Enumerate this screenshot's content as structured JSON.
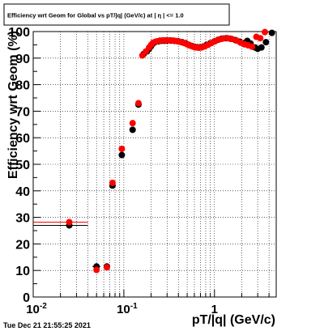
{
  "chart_data": {
    "type": "scatter",
    "title": "Efficiency wrt Geom for Global vs pT/|q| (GeV/c) at | η | <= 1.0",
    "xlabel": "pT/|q| (GeV/c)",
    "ylabel": "Efficiency wrt Geom (%)",
    "x_scale": "log",
    "xlim": [
      0.01,
      4.8
    ],
    "ylim": [
      0,
      100
    ],
    "grid": true,
    "y_ticks": [
      "0",
      "10",
      "20",
      "30",
      "40",
      "50",
      "60",
      "70",
      "80",
      "90",
      "100"
    ],
    "x_ticks": [
      {
        "base": "10",
        "exp": "-2",
        "value": 0.01
      },
      {
        "base": "10",
        "exp": "-1",
        "value": 0.1
      },
      {
        "base": "1",
        "exp": "",
        "value": 1
      }
    ],
    "series": [
      {
        "color": "#000000",
        "points": [
          {
            "x": 0.025,
            "y": 27.0,
            "xerr": [
              0.01,
              0.04
            ]
          },
          {
            "x": 0.05,
            "y": 11.5,
            "xerr": [
              0.045,
              0.055
            ]
          },
          {
            "x": 0.065,
            "y": 11.5
          },
          {
            "x": 0.075,
            "y": 42.0
          },
          {
            "x": 0.095,
            "y": 53.5,
            "xerr": [
              0.09,
              0.1
            ]
          },
          {
            "x": 0.125,
            "y": 63.0
          },
          {
            "x": 0.145,
            "y": 72.5
          },
          {
            "x": 0.165,
            "y": 91.5
          },
          {
            "x": 0.18,
            "y": 92.5
          },
          {
            "x": 0.19,
            "y": 93.5
          },
          {
            "x": 0.2,
            "y": 94.5
          },
          {
            "x": 0.21,
            "y": 95.5
          },
          {
            "x": 0.22,
            "y": 96.0
          },
          {
            "x": 0.24,
            "y": 96.3
          },
          {
            "x": 0.26,
            "y": 96.5
          },
          {
            "x": 0.28,
            "y": 96.5
          },
          {
            "x": 0.3,
            "y": 96.6
          },
          {
            "x": 0.33,
            "y": 96.6
          },
          {
            "x": 0.36,
            "y": 96.5
          },
          {
            "x": 0.4,
            "y": 96.3
          },
          {
            "x": 0.44,
            "y": 96.0
          },
          {
            "x": 0.48,
            "y": 95.6
          },
          {
            "x": 0.52,
            "y": 95.0
          },
          {
            "x": 0.56,
            "y": 94.6
          },
          {
            "x": 0.6,
            "y": 94.3
          },
          {
            "x": 0.65,
            "y": 94.1
          },
          {
            "x": 0.7,
            "y": 94.1
          },
          {
            "x": 0.76,
            "y": 94.4
          },
          {
            "x": 0.82,
            "y": 95.0
          },
          {
            "x": 0.9,
            "y": 95.6
          },
          {
            "x": 1.0,
            "y": 96.3
          },
          {
            "x": 1.1,
            "y": 96.9
          },
          {
            "x": 1.2,
            "y": 97.3
          },
          {
            "x": 1.35,
            "y": 97.5
          },
          {
            "x": 1.5,
            "y": 97.3
          },
          {
            "x": 1.7,
            "y": 96.8
          },
          {
            "x": 1.9,
            "y": 96.2
          },
          {
            "x": 2.1,
            "y": 95.6
          },
          {
            "x": 2.3,
            "y": 96.5
          },
          {
            "x": 2.5,
            "y": 95.5
          },
          {
            "x": 2.8,
            "y": 94.0
          },
          {
            "x": 3.0,
            "y": 93.5
          },
          {
            "x": 3.3,
            "y": 94.0
          },
          {
            "x": 3.7,
            "y": 96.0
          },
          {
            "x": 4.3,
            "y": 99.5
          }
        ]
      },
      {
        "color": "#ff0000",
        "points": [
          {
            "x": 0.025,
            "y": 28.2,
            "xerr": [
              0.01,
              0.04
            ]
          },
          {
            "x": 0.05,
            "y": 10.2
          },
          {
            "x": 0.065,
            "y": 11.2
          },
          {
            "x": 0.075,
            "y": 43.0
          },
          {
            "x": 0.095,
            "y": 55.8,
            "xerr": [
              0.09,
              0.1
            ]
          },
          {
            "x": 0.125,
            "y": 65.5
          },
          {
            "x": 0.145,
            "y": 73.0
          },
          {
            "x": 0.16,
            "y": 91.0
          },
          {
            "x": 0.175,
            "y": 92.5
          },
          {
            "x": 0.19,
            "y": 94.0
          },
          {
            "x": 0.2,
            "y": 95.0
          },
          {
            "x": 0.21,
            "y": 95.8
          },
          {
            "x": 0.23,
            "y": 96.3
          },
          {
            "x": 0.25,
            "y": 96.6
          },
          {
            "x": 0.27,
            "y": 96.7
          },
          {
            "x": 0.29,
            "y": 96.7
          },
          {
            "x": 0.32,
            "y": 96.7
          },
          {
            "x": 0.35,
            "y": 96.6
          },
          {
            "x": 0.38,
            "y": 96.4
          },
          {
            "x": 0.42,
            "y": 96.1
          },
          {
            "x": 0.46,
            "y": 95.7
          },
          {
            "x": 0.5,
            "y": 95.2
          },
          {
            "x": 0.54,
            "y": 94.7
          },
          {
            "x": 0.58,
            "y": 94.3
          },
          {
            "x": 0.62,
            "y": 94.0
          },
          {
            "x": 0.67,
            "y": 93.9
          },
          {
            "x": 0.72,
            "y": 94.0
          },
          {
            "x": 0.78,
            "y": 94.4
          },
          {
            "x": 0.85,
            "y": 95.0
          },
          {
            "x": 0.93,
            "y": 95.7
          },
          {
            "x": 1.02,
            "y": 96.4
          },
          {
            "x": 1.12,
            "y": 97.0
          },
          {
            "x": 1.25,
            "y": 97.4
          },
          {
            "x": 1.4,
            "y": 97.5
          },
          {
            "x": 1.55,
            "y": 97.2
          },
          {
            "x": 1.75,
            "y": 96.6
          },
          {
            "x": 1.95,
            "y": 95.8
          },
          {
            "x": 2.15,
            "y": 95.2
          },
          {
            "x": 2.35,
            "y": 94.8
          },
          {
            "x": 2.6,
            "y": 94.3
          },
          {
            "x": 2.9,
            "y": 98.0
          },
          {
            "x": 3.2,
            "y": 97.5
          },
          {
            "x": 3.6,
            "y": 99.8
          }
        ]
      }
    ]
  },
  "timestamp": "Tue Dec 21 21:55:25 2021"
}
